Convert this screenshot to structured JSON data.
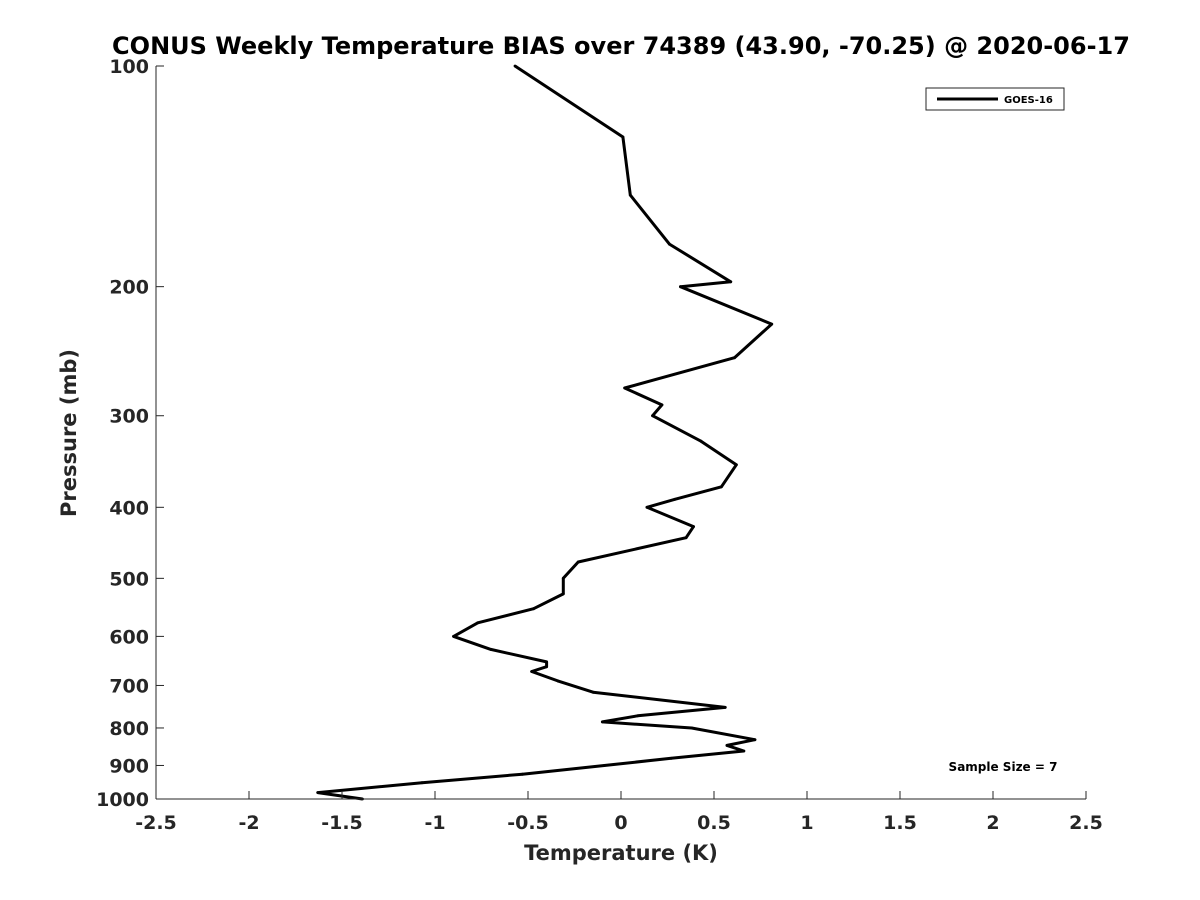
{
  "chart_data": {
    "type": "line",
    "title": "CONUS Weekly Temperature BIAS over 74389 (43.90, -70.25) @ 2020-06-17",
    "xlabel": "Temperature (K)",
    "ylabel": "Pressure (mb)",
    "xlim": [
      -2.5,
      2.5
    ],
    "ylim": [
      100,
      1000
    ],
    "y_scale": "log",
    "y_reversed": true,
    "x_ticks": [
      "-2.5",
      "-2",
      "-1.5",
      "-1",
      "-0.5",
      "0",
      "0.5",
      "1",
      "1.5",
      "2",
      "2.5"
    ],
    "y_ticks": [
      "100",
      "200",
      "300",
      "400",
      "500",
      "600",
      "700",
      "800",
      "900",
      "1000"
    ],
    "grid": false,
    "legend_position": "top-right",
    "annotation": "Sample Size = 7",
    "series": [
      {
        "name": "GOES-16",
        "color": "#000000",
        "points": [
          [
            -0.57,
            100
          ],
          [
            0.01,
            125
          ],
          [
            0.05,
            150
          ],
          [
            0.26,
            175
          ],
          [
            0.59,
            197
          ],
          [
            0.32,
            200
          ],
          [
            0.81,
            225
          ],
          [
            0.61,
            250
          ],
          [
            0.02,
            275
          ],
          [
            0.22,
            290
          ],
          [
            0.17,
            300
          ],
          [
            0.43,
            325
          ],
          [
            0.62,
            350
          ],
          [
            0.54,
            375
          ],
          [
            0.29,
            390
          ],
          [
            0.14,
            400
          ],
          [
            0.39,
            425
          ],
          [
            0.35,
            440
          ],
          [
            -0.23,
            475
          ],
          [
            -0.31,
            500
          ],
          [
            -0.31,
            525
          ],
          [
            -0.47,
            550
          ],
          [
            -0.77,
            575
          ],
          [
            -0.9,
            600
          ],
          [
            -0.7,
            625
          ],
          [
            -0.4,
            650
          ],
          [
            -0.4,
            660
          ],
          [
            -0.48,
            670
          ],
          [
            -0.34,
            690
          ],
          [
            -0.15,
            715
          ],
          [
            0.56,
            750
          ],
          [
            0.09,
            770
          ],
          [
            -0.1,
            785
          ],
          [
            0.38,
            800
          ],
          [
            0.72,
            830
          ],
          [
            0.57,
            845
          ],
          [
            0.66,
            860
          ],
          [
            0.27,
            880
          ],
          [
            -0.09,
            900
          ],
          [
            -0.53,
            925
          ],
          [
            -1.07,
            950
          ],
          [
            -1.63,
            980
          ],
          [
            -1.39,
            1000
          ]
        ]
      }
    ]
  }
}
